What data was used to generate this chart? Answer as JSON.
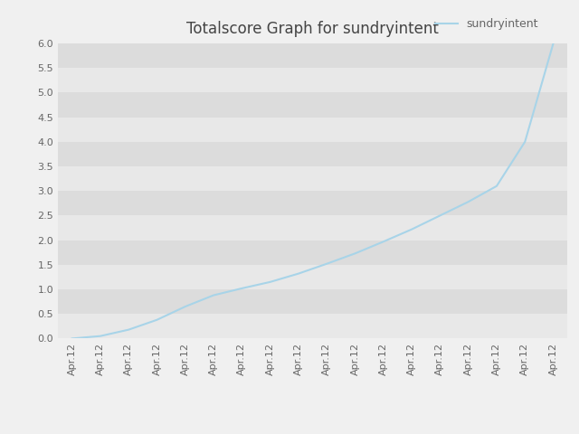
{
  "title": "Totalscore Graph for sundryintent",
  "legend_label": "sundryintent",
  "fig_bg_color": "#f0f0f0",
  "plot_bg_color": "#e8e8e8",
  "line_color": "#a8d4e8",
  "ylim": [
    0.0,
    6.0
  ],
  "yticks": [
    0.0,
    0.5,
    1.0,
    1.5,
    2.0,
    2.5,
    3.0,
    3.5,
    4.0,
    4.5,
    5.0,
    5.5,
    6.0
  ],
  "n_points": 18,
  "x_label_text": "Apr.12",
  "title_fontsize": 12,
  "tick_fontsize": 8,
  "legend_fontsize": 9,
  "y_custom": [
    0.0,
    0.05,
    0.18,
    0.38,
    0.65,
    0.88,
    1.02,
    1.15,
    1.32,
    1.52,
    1.73,
    1.97,
    2.22,
    2.5,
    2.78,
    3.1,
    4.0,
    6.0
  ],
  "band_colors": [
    "#e8e8e8",
    "#dcdcdc"
  ],
  "grid_color": "#ffffff",
  "tick_label_color": "#666666",
  "title_color": "#444444"
}
